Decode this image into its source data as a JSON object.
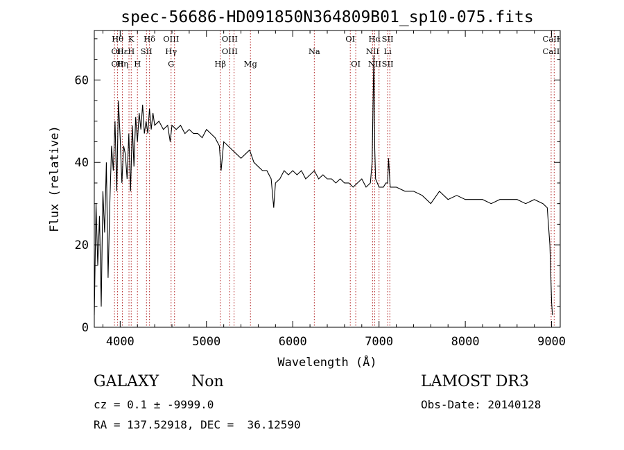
{
  "chart_data": {
    "type": "line",
    "title": "spec-56686-HD091850N364809B01_sp10-075.fits",
    "xlabel": "Wavelength (Å)",
    "ylabel": "Flux (relative)",
    "xlim": [
      3700,
      9100
    ],
    "ylim": [
      0,
      72
    ],
    "xticks": [
      4000,
      5000,
      6000,
      7000,
      8000,
      9000
    ],
    "yticks": [
      0,
      20,
      40,
      60
    ],
    "grid": false,
    "line_color": "#000000",
    "marker_color": "#b22222",
    "series": [
      {
        "x": [
          3700,
          3720,
          3740,
          3760,
          3780,
          3800,
          3820,
          3840,
          3860,
          3880,
          3900,
          3920,
          3940,
          3960,
          3980,
          4000,
          4020,
          4040,
          4060,
          4080,
          4100,
          4120,
          4140,
          4160,
          4180,
          4200,
          4220,
          4240,
          4260,
          4280,
          4300,
          4320,
          4340,
          4360,
          4380,
          4400,
          4450,
          4500,
          4550,
          4580,
          4600,
          4650,
          4700,
          4750,
          4800,
          4850,
          4900,
          4950,
          5000,
          5050,
          5100,
          5150,
          5170,
          5200,
          5250,
          5300,
          5350,
          5400,
          5450,
          5500,
          5550,
          5600,
          5650,
          5700,
          5750,
          5780,
          5800,
          5850,
          5900,
          5950,
          6000,
          6050,
          6100,
          6150,
          6200,
          6250,
          6300,
          6350,
          6400,
          6450,
          6500,
          6550,
          6600,
          6650,
          6700,
          6750,
          6800,
          6850,
          6900,
          6920,
          6940,
          6950,
          6960,
          6980,
          7000,
          7050,
          7080,
          7100,
          7110,
          7130,
          7150,
          7200,
          7300,
          7400,
          7500,
          7600,
          7700,
          7800,
          7900,
          8000,
          8100,
          8200,
          8300,
          8400,
          8500,
          8600,
          8700,
          8800,
          8900,
          8950,
          8980,
          9000,
          9010
        ],
        "y": [
          3,
          30,
          15,
          27,
          5,
          33,
          23,
          40,
          12,
          30,
          44,
          38,
          50,
          33,
          55,
          46,
          35,
          44,
          42,
          36,
          47,
          33,
          49,
          39,
          51,
          45,
          52,
          48,
          54,
          47,
          50,
          47,
          53,
          48,
          52,
          49,
          50,
          48,
          49,
          45,
          49,
          48,
          49,
          47,
          48,
          47,
          47,
          46,
          48,
          47,
          46,
          44,
          38,
          45,
          44,
          43,
          42,
          41,
          42,
          43,
          40,
          39,
          38,
          38,
          36,
          29,
          35,
          36,
          38,
          37,
          38,
          37,
          38,
          36,
          37,
          38,
          36,
          37,
          36,
          36,
          35,
          36,
          35,
          35,
          34,
          35,
          36,
          34,
          35,
          40,
          66,
          44,
          36,
          35,
          34,
          34,
          35,
          35,
          41,
          34,
          34,
          34,
          33,
          33,
          32,
          30,
          33,
          31,
          32,
          31,
          31,
          31,
          30,
          31,
          31,
          31,
          30,
          31,
          30,
          29,
          20,
          6,
          3
        ]
      }
    ],
    "markers": [
      {
        "x": 3934,
        "labels": [
          "",
          "",
          ""
        ]
      },
      {
        "x": 3970,
        "labels": [
          "Hθ",
          "OII",
          "OII"
        ]
      },
      {
        "x": 4026,
        "labels": [
          "",
          "Hε",
          "Hη"
        ]
      },
      {
        "x": 4102,
        "labels": [
          "",
          "",
          ""
        ]
      },
      {
        "x": 4128,
        "labels": [
          "K",
          "H",
          ""
        ]
      },
      {
        "x": 4200,
        "labels": [
          "",
          "",
          "H"
        ]
      },
      {
        "x": 4305,
        "labels": [
          "",
          "SII",
          ""
        ]
      },
      {
        "x": 4340,
        "labels": [
          "Hδ",
          "",
          ""
        ]
      },
      {
        "x": 4590,
        "labels": [
          "OIII",
          "Hγ",
          "G"
        ]
      },
      {
        "x": 4630,
        "labels": [
          "",
          "",
          ""
        ]
      },
      {
        "x": 5160,
        "labels": [
          "",
          "",
          "Hβ"
        ]
      },
      {
        "x": 5270,
        "labels": [
          "OIII",
          "OIII",
          ""
        ]
      },
      {
        "x": 5320,
        "labels": [
          "",
          "",
          ""
        ]
      },
      {
        "x": 5510,
        "labels": [
          "",
          "",
          "Mg"
        ]
      },
      {
        "x": 6250,
        "labels": [
          "",
          "Na",
          ""
        ]
      },
      {
        "x": 6667,
        "labels": [
          "OI",
          "",
          ""
        ]
      },
      {
        "x": 6730,
        "labels": [
          "",
          "",
          "OI"
        ]
      },
      {
        "x": 6925,
        "labels": [
          "",
          "NII",
          ""
        ]
      },
      {
        "x": 6950,
        "labels": [
          "Hα",
          "",
          "NII"
        ]
      },
      {
        "x": 7000,
        "labels": [
          "",
          "",
          ""
        ]
      },
      {
        "x": 7100,
        "labels": [
          "SII",
          "Li",
          "SII"
        ]
      },
      {
        "x": 7125,
        "labels": [
          "",
          "",
          ""
        ]
      },
      {
        "x": 8995,
        "labels": [
          "CaII",
          "CaII",
          ""
        ]
      },
      {
        "x": 9030,
        "labels": [
          "",
          "",
          ""
        ]
      }
    ]
  },
  "info": {
    "class": "GALAXY",
    "subclass": "Non",
    "survey": "LAMOST DR3",
    "cz": "cz = 0.1 ± -9999.0",
    "obs_date": "Obs-Date: 20140128",
    "coords": "RA = 137.52918, DEC =  36.12590"
  }
}
